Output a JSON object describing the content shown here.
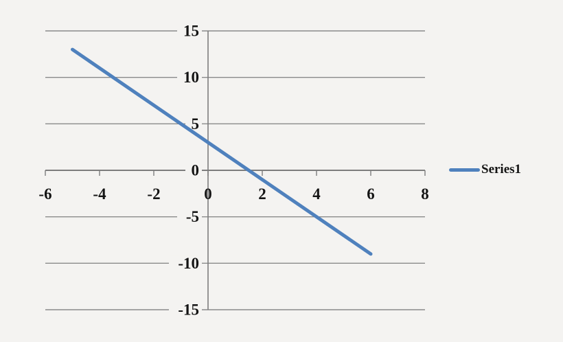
{
  "chart_data": {
    "type": "line",
    "title": "",
    "xlabel": "",
    "ylabel": "",
    "x_axis": {
      "min": -6,
      "max": 8,
      "tick_step": 2,
      "ticks": [
        -6,
        -4,
        -2,
        0,
        2,
        4,
        6,
        8
      ]
    },
    "y_axis": {
      "min": -15,
      "max": 15,
      "tick_step": 5,
      "ticks": [
        15,
        10,
        5,
        0,
        -5,
        -10,
        -15
      ]
    },
    "grid": "horizontal",
    "legend_position": "right-middle",
    "series": [
      {
        "name": "Series1",
        "color": "#4f81bd",
        "points": [
          [
            -5,
            13
          ],
          [
            6,
            -9
          ]
        ]
      }
    ]
  },
  "style": {
    "background": "#f4f3f1",
    "gridline_color": "#8a8a8a",
    "axis_color": "#7d7d7d",
    "tick_label_color": "#141414"
  }
}
